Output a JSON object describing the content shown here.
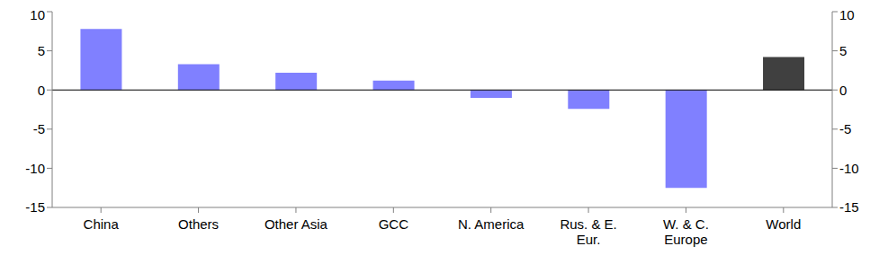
{
  "chart_data": {
    "type": "bar",
    "categories": [
      "China",
      "Others",
      "Other Asia",
      "GCC",
      "N. America",
      "Rus. & E.\nEur.",
      "W. & C.\nEurope",
      "World"
    ],
    "values": [
      7.8,
      3.3,
      2.2,
      1.2,
      -1.0,
      -2.4,
      -12.5,
      4.2
    ],
    "colors": [
      "#8080ff",
      "#8080ff",
      "#8080ff",
      "#8080ff",
      "#8080ff",
      "#8080ff",
      "#8080ff",
      "#404040"
    ],
    "ylim": [
      -15,
      10
    ],
    "yticks": [
      -15,
      -10,
      -5,
      0,
      5,
      10
    ],
    "y2lim": [
      -15,
      10
    ],
    "y2ticks": [
      -15,
      -10,
      -5,
      0,
      5,
      10
    ],
    "grid": false
  }
}
